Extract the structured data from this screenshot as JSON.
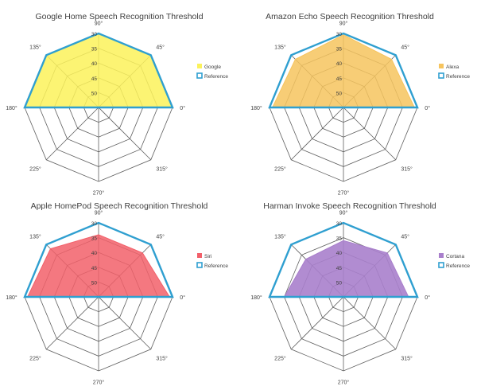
{
  "colors": {
    "reference": "#2f9fd0",
    "grid": "#5f5f5f",
    "label": "#404040",
    "title": "#404040"
  },
  "chart_data": [
    {
      "type": "radar",
      "title": "Google Home Speech Recognition Threshold",
      "categories": [
        "0°",
        "45°",
        "90°",
        "135°",
        "180°",
        "225°",
        "270°",
        "315°"
      ],
      "radial_ticks": [
        "50",
        "45",
        "40",
        "35",
        "30"
      ],
      "radial_range": [
        55,
        30
      ],
      "series": [
        {
          "name": "Google",
          "color": "#fbf25b",
          "opacity": 0.85,
          "values": [
            30,
            30,
            30,
            30,
            30,
            55,
            55,
            55
          ]
        },
        {
          "name": "Reference",
          "color": "#2f9fd0",
          "values": [
            30,
            30,
            30,
            30,
            30,
            55,
            55,
            55
          ]
        }
      ],
      "legend": "right"
    },
    {
      "type": "radar",
      "title": "Amazon Echo Speech Recognition Threshold",
      "categories": [
        "0°",
        "45°",
        "90°",
        "135°",
        "180°",
        "225°",
        "270°",
        "315°"
      ],
      "radial_ticks": [
        "50",
        "45",
        "40",
        "35",
        "30"
      ],
      "radial_range": [
        55,
        30
      ],
      "series": [
        {
          "name": "Alexa",
          "color": "#f6c45e",
          "opacity": 0.85,
          "values": [
            31,
            32,
            30.5,
            32,
            31,
            55,
            55,
            55
          ]
        },
        {
          "name": "Reference",
          "color": "#2f9fd0",
          "values": [
            30,
            30,
            30,
            30,
            30,
            55,
            55,
            55
          ]
        }
      ],
      "legend": "right"
    },
    {
      "type": "radar",
      "title": "Apple HomePod Speech Recognition Threshold",
      "categories": [
        "0°",
        "45°",
        "90°",
        "135°",
        "180°",
        "225°",
        "270°",
        "315°"
      ],
      "radial_ticks": [
        "50",
        "45",
        "40",
        "35",
        "30"
      ],
      "radial_range": [
        55,
        30
      ],
      "series": [
        {
          "name": "Siri",
          "color": "#f2606a",
          "opacity": 0.85,
          "values": [
            31,
            34,
            34,
            32,
            31,
            55,
            55,
            55
          ]
        },
        {
          "name": "Reference",
          "color": "#2f9fd0",
          "values": [
            30,
            30,
            30,
            30,
            30,
            55,
            55,
            55
          ]
        }
      ],
      "legend": "right"
    },
    {
      "type": "radar",
      "title": "Harman Invoke Speech Recognition Threshold",
      "categories": [
        "0°",
        "45°",
        "90°",
        "135°",
        "180°",
        "225°",
        "270°",
        "315°"
      ],
      "radial_ticks": [
        "50",
        "45",
        "40",
        "35",
        "30"
      ],
      "radial_range": [
        55,
        30
      ],
      "series": [
        {
          "name": "Cortana",
          "color": "#a97fcc",
          "opacity": 0.9,
          "values": [
            33,
            34,
            36,
            37,
            35,
            55,
            55,
            55
          ]
        },
        {
          "name": "Reference",
          "color": "#2f9fd0",
          "values": [
            30,
            30,
            30,
            30,
            30,
            55,
            55,
            55
          ]
        }
      ],
      "legend": "right"
    }
  ]
}
